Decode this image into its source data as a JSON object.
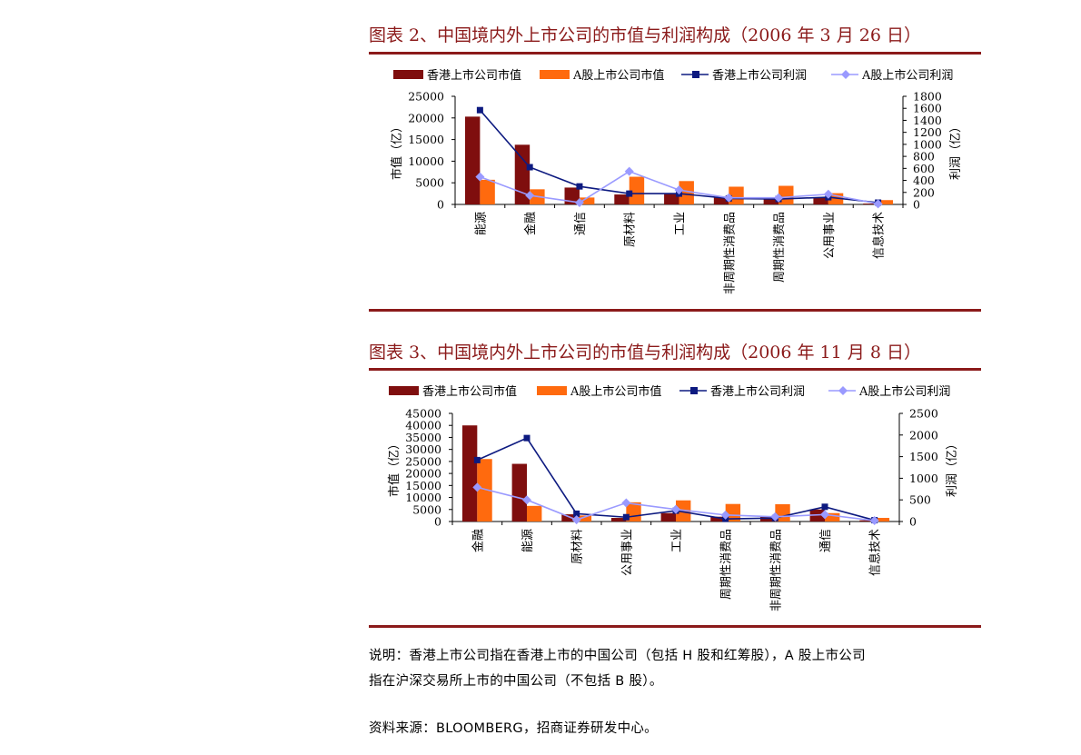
{
  "figures": [
    {
      "title": "图表 2、中国境内外上市公司的市值与利润构成（2006 年 3 月 26 日）"
    },
    {
      "title": "图表 3、中国境内外上市公司的市值与利润构成（2006 年 11 月 8 日）"
    }
  ],
  "colors": {
    "hk_value": "#7f0e0e",
    "a_value": "#ff6a0e",
    "hk_profit": "#0d1a80",
    "a_profit": "#9a9aff",
    "rule": "#8b1a1a"
  },
  "chart_data": [
    {
      "type": "bar",
      "categories": [
        "能源",
        "金融",
        "通信",
        "原材料",
        "工业",
        "非周期性消费品",
        "周期性消费品",
        "公用事业",
        "信息技术"
      ],
      "legend": [
        "香港上市公司市值",
        "A股上市公司市值",
        "香港上市公司利润",
        "A股上市公司利润"
      ],
      "ylabel": "市值（亿）",
      "y2label": "利润（亿）",
      "ylim": [
        0,
        25000
      ],
      "yticks": [
        0,
        5000,
        10000,
        15000,
        20000,
        25000
      ],
      "y2lim": [
        0,
        1800
      ],
      "y2ticks": [
        0,
        200,
        400,
        600,
        800,
        1000,
        1200,
        1400,
        1600,
        1800
      ],
      "series": [
        {
          "name": "香港上市公司市值",
          "axis": "left",
          "kind": "bar",
          "values": [
            20300,
            13800,
            3900,
            2300,
            2400,
            1800,
            1500,
            1600,
            200
          ]
        },
        {
          "name": "A股上市公司市值",
          "axis": "left",
          "kind": "bar",
          "values": [
            5700,
            3500,
            1600,
            6400,
            5400,
            4100,
            4300,
            2600,
            1000
          ]
        },
        {
          "name": "香港上市公司利润",
          "axis": "right",
          "kind": "line",
          "values": [
            1570,
            620,
            300,
            180,
            180,
            100,
            90,
            120,
            30
          ]
        },
        {
          "name": "A股上市公司利润",
          "axis": "right",
          "kind": "line",
          "values": [
            460,
            150,
            30,
            550,
            240,
            110,
            110,
            170,
            10
          ]
        }
      ]
    },
    {
      "type": "bar",
      "categories": [
        "金融",
        "能源",
        "原材料",
        "公用事业",
        "工业",
        "周期性消费品",
        "非周期性消费品",
        "通信",
        "信息技术"
      ],
      "legend": [
        "香港上市公司市值",
        "A股上市公司市值",
        "香港上市公司利润",
        "A股上市公司利润"
      ],
      "ylabel": "市值（亿）",
      "y2label": "利润（亿）",
      "ylim": [
        0,
        45000
      ],
      "yticks": [
        0,
        5000,
        10000,
        15000,
        20000,
        25000,
        30000,
        35000,
        40000,
        45000
      ],
      "y2lim": [
        0,
        2500
      ],
      "y2ticks": [
        0,
        500,
        1000,
        1500,
        2000,
        2500
      ],
      "series": [
        {
          "name": "香港上市公司市值",
          "axis": "left",
          "kind": "bar",
          "values": [
            40000,
            24000,
            3000,
            1500,
            3500,
            2000,
            2000,
            5000,
            500
          ]
        },
        {
          "name": "A股上市公司市值",
          "axis": "left",
          "kind": "bar",
          "values": [
            26000,
            6500,
            2500,
            8000,
            8800,
            7300,
            7200,
            3500,
            1500
          ]
        },
        {
          "name": "香港上市公司利润",
          "axis": "right",
          "kind": "line",
          "values": [
            1420,
            1930,
            180,
            100,
            250,
            60,
            80,
            340,
            30
          ]
        },
        {
          "name": "A股上市公司利润",
          "axis": "right",
          "kind": "line",
          "values": [
            790,
            500,
            40,
            430,
            280,
            150,
            110,
            160,
            20
          ]
        }
      ]
    }
  ],
  "notes": {
    "line1": "说明：香港上市公司指在香港上市的中国公司（包括 H 股和红筹股），A 股上市公司",
    "line2": "指在沪深交易所上市的中国公司（不包括 B 股）。",
    "source": "资料来源：BLOOMBERG，招商证券研发中心。"
  }
}
